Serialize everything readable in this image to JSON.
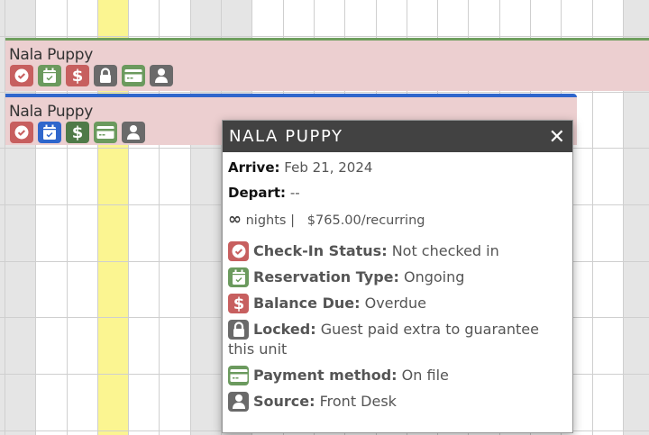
{
  "colors": {
    "red": "#c75f5f",
    "green": "#6b9a5e",
    "dark_green": "#4f7a48",
    "gray": "#6a6a6a",
    "blue": "#2f66cc",
    "bar_pink": "#eccfd0",
    "today": "#fbf591",
    "weekend": "#e5e5e5"
  },
  "reservations": [
    {
      "name": "Nala Puppy",
      "top_color": "#6f9f5f",
      "icons": [
        {
          "name": "check-circle",
          "color": "#c75f5f"
        },
        {
          "name": "calendar-check",
          "color": "#6b9a5e"
        },
        {
          "name": "dollar",
          "color": "#c75f5f"
        },
        {
          "name": "lock",
          "color": "#6a6a6a"
        },
        {
          "name": "credit-card",
          "color": "#6b9a5e"
        },
        {
          "name": "user",
          "color": "#6a6a6a"
        }
      ]
    },
    {
      "name": "Nala Puppy",
      "top_color": "#2f66cc",
      "icons": [
        {
          "name": "check-circle",
          "color": "#c75f5f"
        },
        {
          "name": "calendar-check",
          "color": "#2f66cc"
        },
        {
          "name": "dollar",
          "color": "#4f7a48"
        },
        {
          "name": "credit-card",
          "color": "#6b9a5e"
        },
        {
          "name": "user",
          "color": "#6a6a6a"
        }
      ]
    }
  ],
  "tooltip": {
    "title": "NALA PUPPY",
    "close_icon": "close-icon",
    "arrive_label": "Arrive:",
    "arrive_value": "Feb 21, 2024",
    "depart_label": "Depart:",
    "depart_value": "--",
    "nights_icon": "infinity-icon",
    "nights_text": "nights |",
    "price": "$765.00/recurring",
    "details": [
      {
        "icon": "check-circle",
        "color": "#c75f5f",
        "label": "Check-In Status:",
        "value": "Not checked in"
      },
      {
        "icon": "calendar-check",
        "color": "#6b9a5e",
        "label": "Reservation Type:",
        "value": "Ongoing"
      },
      {
        "icon": "dollar",
        "color": "#c75f5f",
        "label": "Balance Due:",
        "value": "Overdue"
      },
      {
        "icon": "lock",
        "color": "#6a6a6a",
        "label": "Locked:",
        "value": "Guest paid extra to guarantee this unit"
      },
      {
        "icon": "credit-card",
        "color": "#6b9a5e",
        "label": "Payment method:",
        "value": "On file"
      },
      {
        "icon": "user",
        "color": "#6a6a6a",
        "label": "Source:",
        "value": "Front Desk"
      }
    ]
  }
}
